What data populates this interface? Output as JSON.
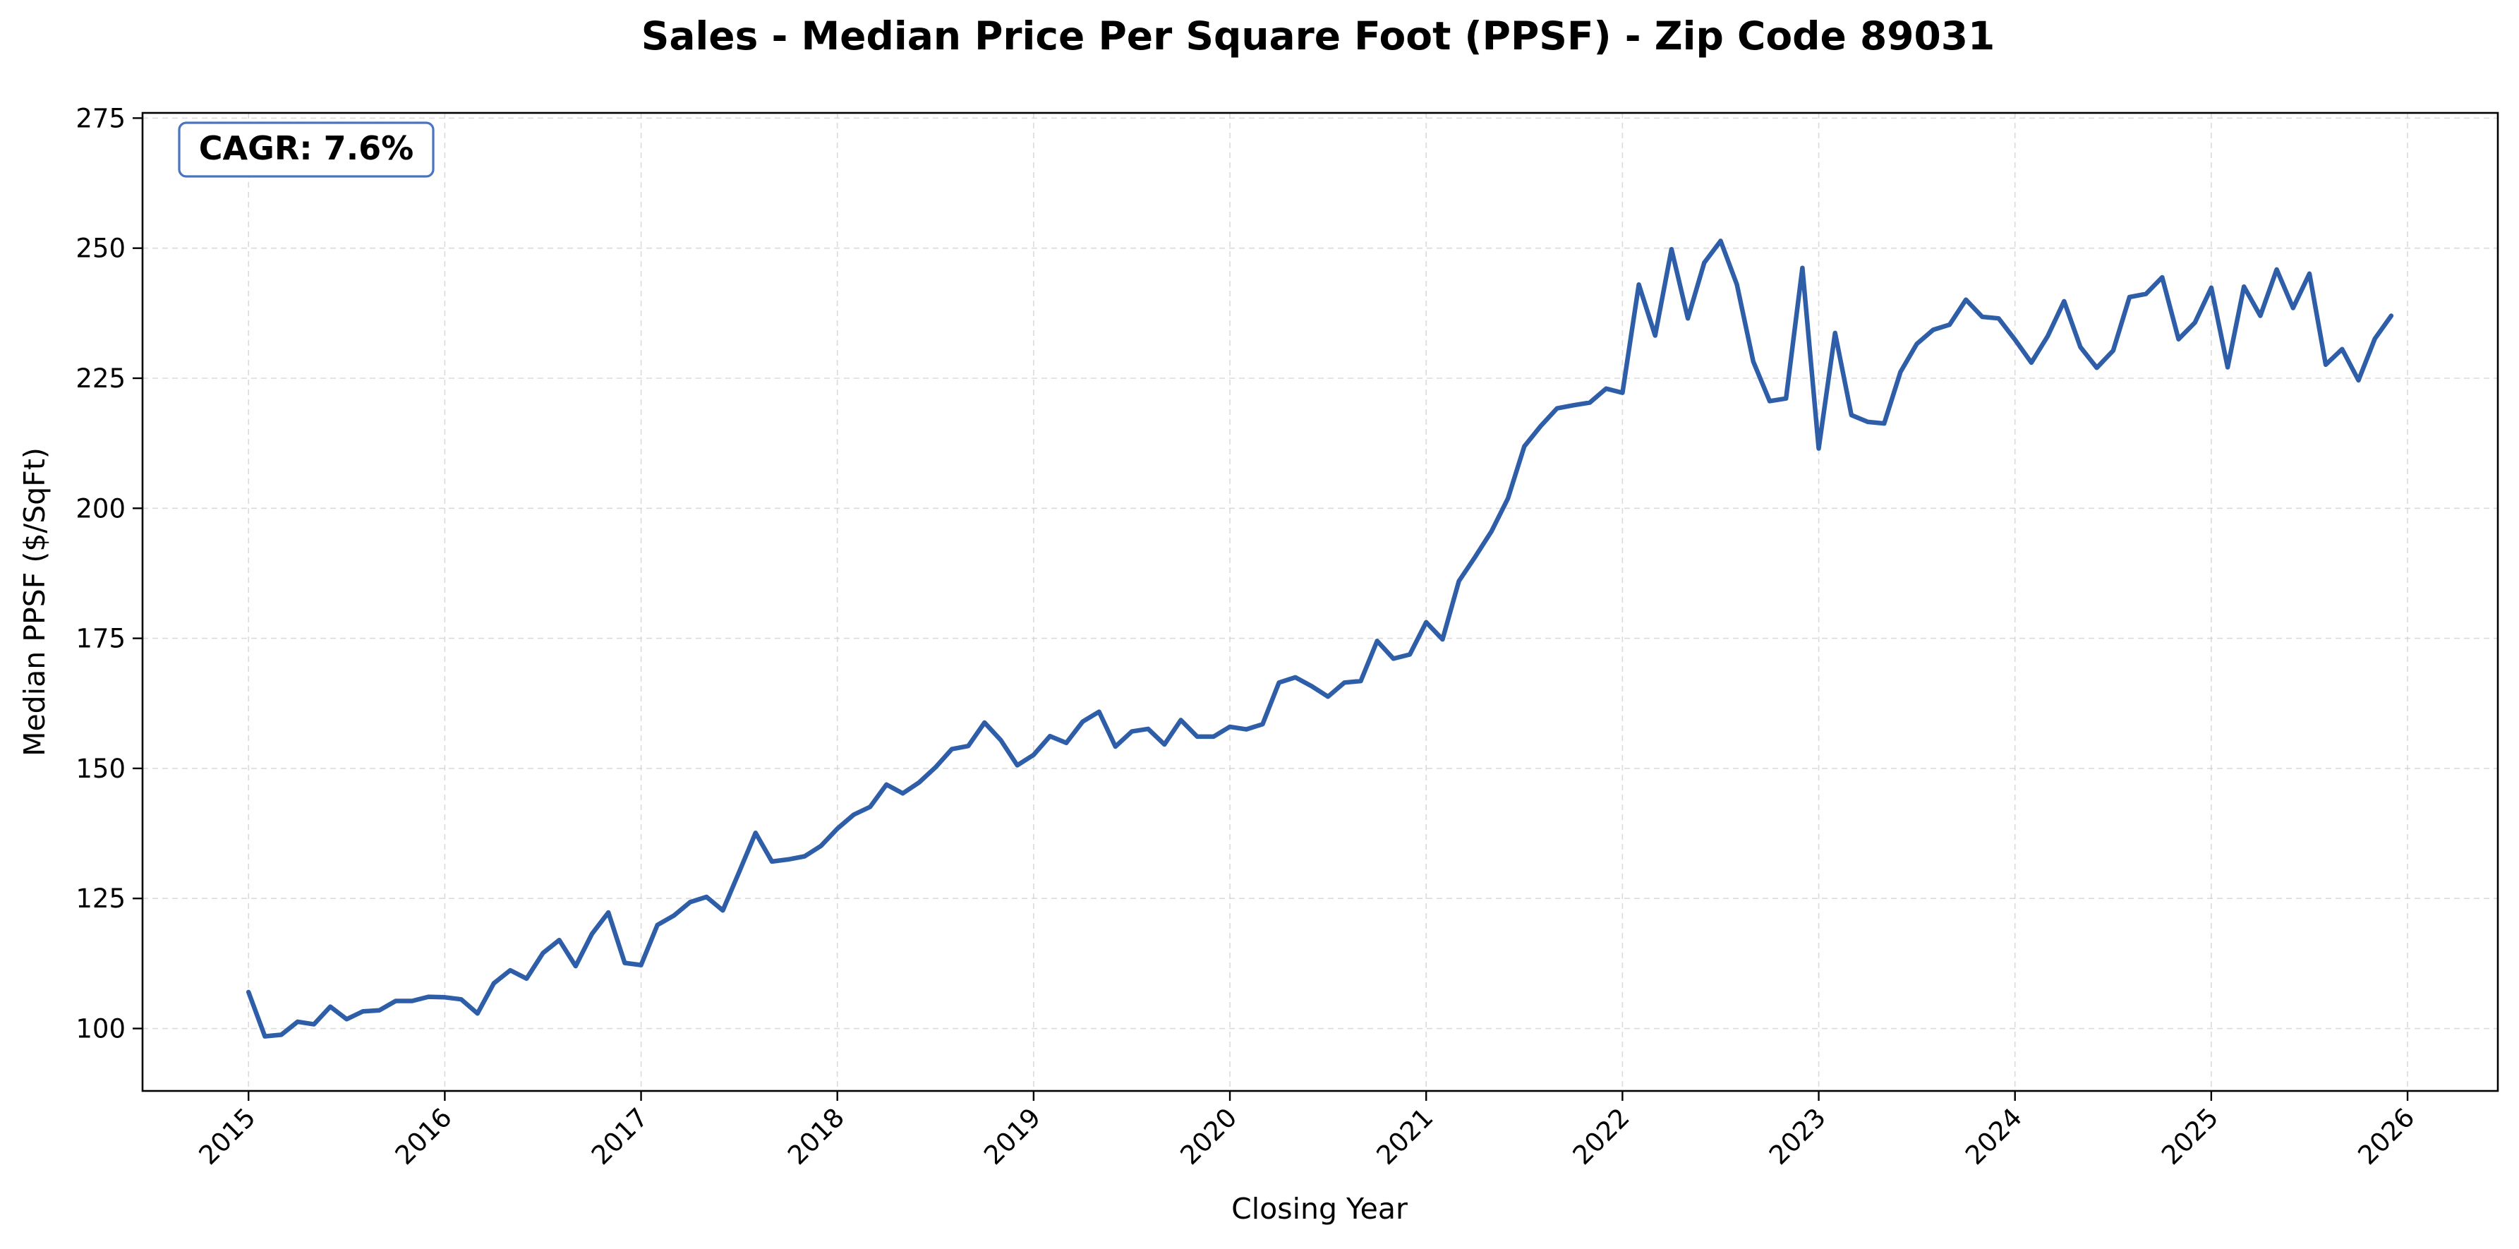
{
  "chart_data": {
    "type": "line",
    "title": "Sales - Median Price Per Square Foot (PPSF) - Zip Code 89031",
    "xlabel": "Closing Year",
    "ylabel": "Median PPSF ($/SqFt)",
    "xlim": [
      2014.46,
      2026.46
    ],
    "ylim": [
      88,
      276
    ],
    "x_ticks": [
      2015,
      2016,
      2017,
      2018,
      2019,
      2020,
      2021,
      2022,
      2023,
      2024,
      2025,
      2026
    ],
    "y_ticks": [
      100,
      125,
      150,
      175,
      200,
      225,
      250,
      275
    ],
    "grid": true,
    "annotation": "CAGR: 7.6%",
    "line_color": "#2f5ea8",
    "series": [
      {
        "x": [
          "2015-01",
          "2015-02",
          "2015-03",
          "2015-04",
          "2015-05",
          "2015-06",
          "2015-07",
          "2015-08",
          "2015-09",
          "2015-10",
          "2015-11",
          "2015-12",
          "2016-01",
          "2016-02",
          "2016-03",
          "2016-04",
          "2016-05",
          "2016-06",
          "2016-07",
          "2016-08",
          "2016-09",
          "2016-10",
          "2016-11",
          "2016-12",
          "2017-01",
          "2017-02",
          "2017-03",
          "2017-04",
          "2017-05",
          "2017-06",
          "2017-07",
          "2017-08",
          "2017-09",
          "2017-10",
          "2017-11",
          "2017-12",
          "2018-01",
          "2018-02",
          "2018-03",
          "2018-04",
          "2018-05",
          "2018-06",
          "2018-07",
          "2018-08",
          "2018-09",
          "2018-10",
          "2018-11",
          "2018-12",
          "2019-01",
          "2019-02",
          "2019-03",
          "2019-04",
          "2019-05",
          "2019-06",
          "2019-07",
          "2019-08",
          "2019-09",
          "2019-10",
          "2019-11",
          "2019-12",
          "2020-01",
          "2020-02",
          "2020-03",
          "2020-04",
          "2020-05",
          "2020-06",
          "2020-07",
          "2020-08",
          "2020-09",
          "2020-10",
          "2020-11",
          "2020-12",
          "2021-01",
          "2021-02",
          "2021-03",
          "2021-04",
          "2021-05",
          "2021-06",
          "2021-07",
          "2021-08",
          "2021-09",
          "2021-10",
          "2021-11",
          "2021-12",
          "2022-01",
          "2022-02",
          "2022-03",
          "2022-04",
          "2022-05",
          "2022-06",
          "2022-07",
          "2022-08",
          "2022-09",
          "2022-10",
          "2022-11",
          "2022-12",
          "2023-01",
          "2023-02",
          "2023-03",
          "2023-04",
          "2023-05",
          "2023-06",
          "2023-07",
          "2023-08",
          "2023-09",
          "2023-10",
          "2023-11",
          "2023-12",
          "2024-01",
          "2024-02",
          "2024-03",
          "2024-04",
          "2024-05",
          "2024-06",
          "2024-07",
          "2024-08",
          "2024-09",
          "2024-10",
          "2024-11",
          "2024-12",
          "2025-01",
          "2025-02",
          "2025-03",
          "2025-04",
          "2025-05",
          "2025-06",
          "2025-07",
          "2025-08",
          "2025-09",
          "2025-10",
          "2025-11",
          "2025-12"
        ],
        "values": [
          107,
          98.5,
          98.8,
          101.3,
          100.8,
          104.2,
          101.8,
          103.3,
          103.5,
          105.3,
          105.3,
          106.1,
          106,
          105.6,
          102.9,
          108.7,
          111.2,
          109.6,
          114.5,
          117,
          112,
          118.2,
          122.3,
          112.6,
          112.2,
          119.9,
          121.7,
          124.3,
          125.3,
          122.7,
          130.1,
          137.6,
          132.1,
          132.5,
          133.1,
          135.1,
          138.4,
          141.1,
          142.6,
          146.9,
          145.2,
          147.3,
          150.2,
          153.7,
          154.3,
          158.8,
          155.4,
          150.6,
          152.6,
          156.2,
          154.9,
          159,
          160.9,
          154.2,
          157.1,
          157.6,
          154.6,
          159.3,
          156.1,
          156.1,
          158,
          157.5,
          158.5,
          166.5,
          167.5,
          165.8,
          163.8,
          166.5,
          166.8,
          174.5,
          171.1,
          171.9,
          178.1,
          174.8,
          186,
          190.7,
          195.6,
          201.9,
          211.9,
          215.8,
          219.2,
          219.8,
          220.3,
          223,
          222.2,
          243,
          233.2,
          249.8,
          236.5,
          247.2,
          251.4,
          243,
          228.2,
          220.6,
          221.1,
          246.2,
          211.5,
          233.7,
          217.9,
          216.6,
          216.3,
          226.2,
          231.6,
          234.3,
          235.3,
          240.1,
          236.8,
          236.5,
          232.4,
          228,
          233.1,
          239.8,
          231,
          227,
          230.3,
          240.6,
          241.2,
          244.4,
          232.5,
          235.7,
          242.4,
          227.1,
          242.6,
          237,
          245.9,
          238.5,
          245.1,
          227.6,
          230.6,
          224.6,
          232.6,
          237
        ]
      }
    ]
  }
}
